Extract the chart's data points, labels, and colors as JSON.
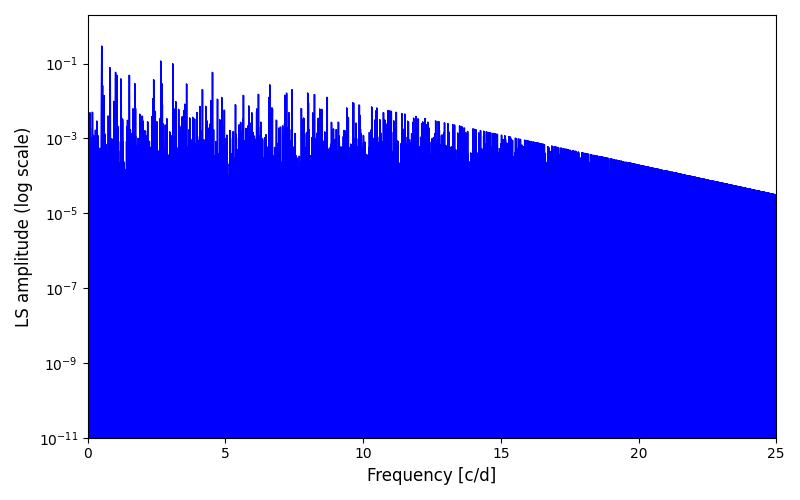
{
  "xlabel": "Frequency [c/d]",
  "ylabel": "LS amplitude (log scale)",
  "xlim": [
    0,
    25
  ],
  "ylim": [
    1e-11,
    2.0
  ],
  "line_color": "#0000ff",
  "background_color": "#ffffff",
  "figsize": [
    8.0,
    5.0
  ],
  "dpi": 100,
  "freq_max": 25.0,
  "n_points": 15000,
  "seed": 7
}
